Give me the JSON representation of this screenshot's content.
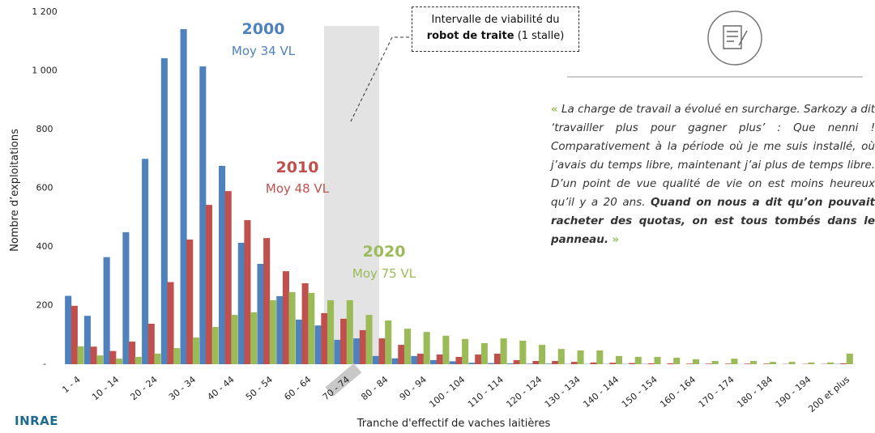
{
  "chart_data": {
    "type": "bar",
    "x_label": "Tranche d'effectif de vaches laitières",
    "y_label": "Nombre d’exploitations",
    "categories": [
      "1 - 4",
      null,
      "10 - 14",
      null,
      "20 - 24",
      null,
      "30 - 34",
      null,
      "40 - 44",
      null,
      "50 - 54",
      null,
      "60 - 64",
      null,
      "70 - 74",
      null,
      "80 - 84",
      null,
      "90 - 94",
      null,
      "100 - 104",
      null,
      "110 - 114",
      null,
      "120 - 124",
      null,
      "130 - 134",
      null,
      "140 - 144",
      null,
      "150 - 154",
      null,
      "160 - 164",
      null,
      "170 - 174",
      null,
      "180 - 184",
      null,
      "190 - 194",
      null,
      "200 et plus"
    ],
    "series": [
      {
        "name": "2000",
        "subtitle": "Moy 34 VL",
        "color": "#4f81bd",
        "values": [
          233,
          165,
          365,
          450,
          700,
          1043,
          1142,
          1015,
          676,
          414,
          342,
          232,
          152,
          132,
          83,
          88,
          28,
          20,
          28,
          14,
          10,
          5,
          4,
          3,
          2,
          2,
          1,
          1,
          1,
          1,
          1,
          0,
          0,
          0,
          0,
          0,
          0,
          0,
          0,
          0,
          1
        ]
      },
      {
        "name": "2010",
        "subtitle": "Moy 48 VL",
        "color": "#c0504d",
        "values": [
          199,
          60,
          45,
          77,
          138,
          280,
          425,
          543,
          590,
          491,
          430,
          317,
          276,
          174,
          155,
          116,
          88,
          66,
          36,
          33,
          25,
          33,
          36,
          14,
          11,
          11,
          8,
          6,
          5,
          4,
          3,
          3,
          2,
          2,
          2,
          2,
          2,
          1,
          1,
          1,
          3
        ]
      },
      {
        "name": "2020",
        "subtitle": "Moy 75 VL",
        "color": "#9bbb59",
        "values": [
          61,
          30,
          19,
          25,
          36,
          55,
          91,
          127,
          168,
          177,
          218,
          246,
          243,
          218,
          218,
          168,
          149,
          121,
          110,
          97,
          86,
          72,
          88,
          80,
          66,
          52,
          47,
          47,
          28,
          25,
          25,
          22,
          17,
          11,
          19,
          11,
          8,
          8,
          6,
          6,
          36
        ]
      }
    ],
    "ylim": [
      0,
      1200
    ],
    "yticks": [
      {
        "value": 0,
        "label": "-"
      },
      200,
      400,
      600,
      800,
      {
        "value": 1000,
        "label": "1 000"
      },
      {
        "value": 1200,
        "label": "1 200"
      }
    ],
    "grid": false,
    "callout": {
      "line1": "Intervalle de viabilité du",
      "bold": "robot de traite",
      "rest": "(1 stalle)"
    },
    "quote": {
      "open": "«",
      "text": "La charge de travail a évolué en surcharge. Sarkozy a dit ‘travailler plus pour gagner plus’ : Que nenni ! Comparativement à la période où je me suis installé, où j’avais du temps libre, maintenant j’ai plus de temps libre. D’un point de vue qualité de vie on est moins heureux qu’il y a 20 ans.",
      "bold": "Quand on nous a dit qu’on pouvait racheter des quotas, on est tous tombés dans le panneau.",
      "close": "»"
    },
    "logo": "INRAE"
  }
}
